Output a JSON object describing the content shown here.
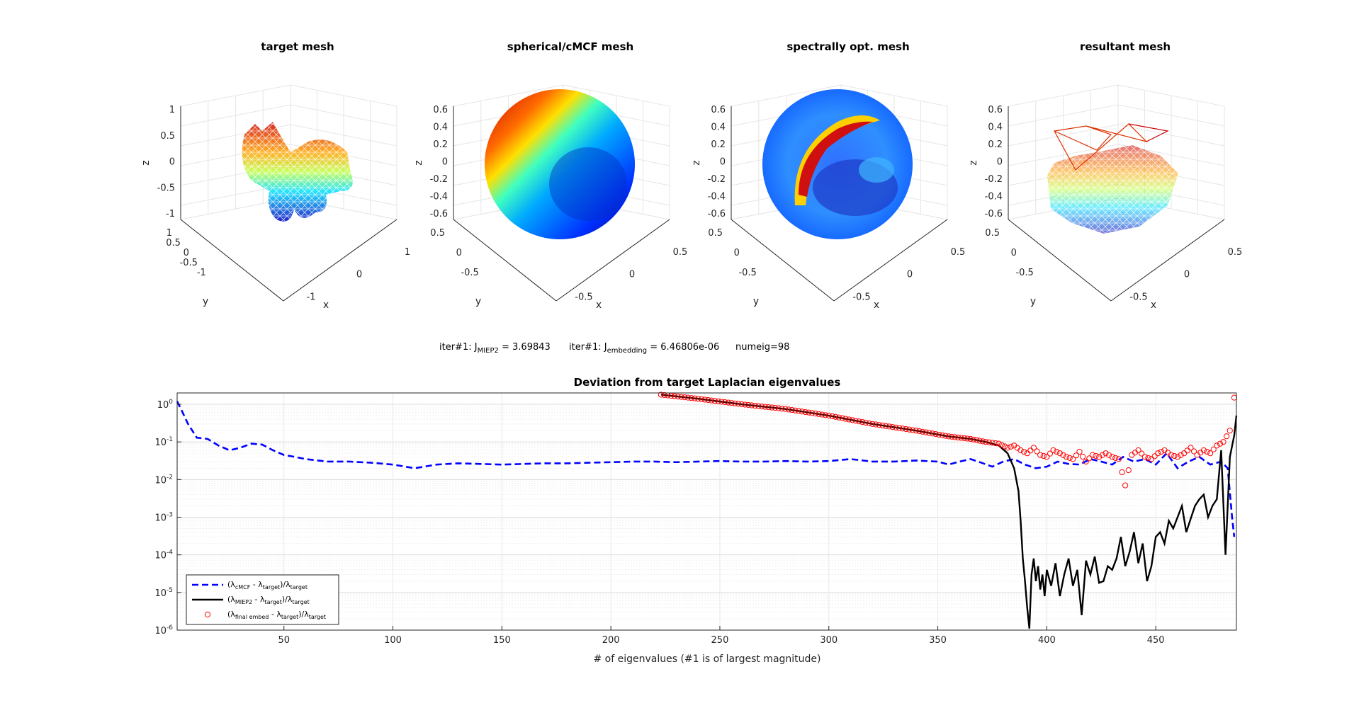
{
  "meshes": [
    {
      "title": "target mesh",
      "z_ticks": [
        "1",
        "0.5",
        "0",
        "-0.5",
        "-1"
      ],
      "y_ticks": [
        "1",
        "0.5",
        "0",
        "-0.5",
        "-1"
      ],
      "x_ticks": [
        "1",
        "0",
        "-1"
      ],
      "xlabel": "x",
      "ylabel": "y",
      "zlabel": "z"
    },
    {
      "title": "spherical/cMCF mesh",
      "z_ticks": [
        "0.6",
        "0.4",
        "0.2",
        "0",
        "-0.2",
        "-0.4",
        "-0.6"
      ],
      "y_ticks": [
        "0.5",
        "0",
        "-0.5"
      ],
      "x_ticks": [
        "0.5",
        "0",
        "-0.5"
      ],
      "xlabel": "x",
      "ylabel": "y",
      "zlabel": "z"
    },
    {
      "title": "spectrally opt. mesh",
      "z_ticks": [
        "0.6",
        "0.4",
        "0.2",
        "0",
        "-0.2",
        "-0.4",
        "-0.6"
      ],
      "y_ticks": [
        "0.5",
        "0",
        "-0.5"
      ],
      "x_ticks": [
        "0.5",
        "0",
        "-0.5"
      ],
      "xlabel": "x",
      "ylabel": "y",
      "zlabel": "z"
    },
    {
      "title": "resultant mesh",
      "z_ticks": [
        "0.6",
        "0.4",
        "0.2",
        "0",
        "-0.2",
        "-0.4",
        "-0.6"
      ],
      "y_ticks": [
        "0.5",
        "0",
        "-0.5"
      ],
      "x_ticks": [
        "0.5",
        "0",
        "-0.5"
      ],
      "xlabel": "x",
      "ylabel": "y",
      "zlabel": "z"
    }
  ],
  "status": {
    "miep_prefix": "iter#1: J",
    "miep_sub": "MIEP2",
    "miep_value": " = 3.69843",
    "emb_prefix": "iter#1: J",
    "emb_sub": "embedding",
    "emb_value": " = 6.46806e-06",
    "numeig": "numeig=98"
  },
  "chart_data": {
    "type": "line",
    "title": "Deviation from target Laplacian eigenvalues",
    "xlabel": "# of eigenvalues (#1 is of largest magnitude)",
    "ylabel": "",
    "xlim": [
      1,
      487
    ],
    "ylim": [
      1e-06,
      2
    ],
    "yscale": "log",
    "grid": "y minor grid on",
    "x_ticks": [
      50,
      100,
      150,
      200,
      250,
      300,
      350,
      400,
      450
    ],
    "y_ticks": [
      {
        "base": "10",
        "exp": "0"
      },
      {
        "base": "10",
        "exp": "-1"
      },
      {
        "base": "10",
        "exp": "-2"
      },
      {
        "base": "10",
        "exp": "-3"
      },
      {
        "base": "10",
        "exp": "-4"
      },
      {
        "base": "10",
        "exp": "-5"
      },
      {
        "base": "10",
        "exp": "-6"
      }
    ],
    "legend_position": "bottom-left",
    "series": [
      {
        "name_parts": [
          "(λ",
          "cMCF",
          " - λ",
          "target",
          ")/λ",
          "target"
        ],
        "style": "dashed",
        "color": "#0000ff",
        "x": [
          1,
          3,
          6,
          10,
          15,
          20,
          25,
          30,
          35,
          40,
          45,
          50,
          55,
          60,
          70,
          80,
          90,
          100,
          110,
          120,
          130,
          140,
          150,
          160,
          170,
          180,
          190,
          200,
          210,
          220,
          230,
          240,
          250,
          260,
          270,
          280,
          290,
          300,
          310,
          320,
          330,
          340,
          350,
          355,
          360,
          365,
          370,
          375,
          380,
          385,
          390,
          395,
          400,
          405,
          410,
          415,
          420,
          425,
          430,
          435,
          440,
          445,
          450,
          455,
          460,
          465,
          470,
          475,
          480,
          483,
          485,
          486
        ],
        "y": [
          1.2,
          0.7,
          0.3,
          0.13,
          0.12,
          0.08,
          0.06,
          0.07,
          0.09,
          0.085,
          0.06,
          0.045,
          0.04,
          0.035,
          0.03,
          0.03,
          0.028,
          0.025,
          0.02,
          0.025,
          0.027,
          0.026,
          0.025,
          0.026,
          0.027,
          0.027,
          0.028,
          0.029,
          0.03,
          0.03,
          0.029,
          0.03,
          0.031,
          0.03,
          0.03,
          0.031,
          0.03,
          0.031,
          0.035,
          0.03,
          0.03,
          0.032,
          0.03,
          0.025,
          0.03,
          0.035,
          0.028,
          0.022,
          0.03,
          0.035,
          0.025,
          0.02,
          0.022,
          0.03,
          0.026,
          0.025,
          0.035,
          0.03,
          0.025,
          0.04,
          0.03,
          0.035,
          0.025,
          0.05,
          0.02,
          0.03,
          0.04,
          0.025,
          0.03,
          0.02,
          0.001,
          0.0003
        ]
      },
      {
        "name_parts": [
          "(λ",
          "MIEP2",
          " - λ",
          "target",
          ")/λ",
          "target"
        ],
        "style": "solid",
        "color": "#000000",
        "x": [
          223,
          240,
          260,
          280,
          300,
          320,
          340,
          355,
          365,
          372,
          378,
          382,
          385,
          387,
          388,
          389,
          390,
          391,
          392,
          393,
          394,
          395,
          396,
          397,
          398,
          399,
          400,
          402,
          404,
          406,
          408,
          410,
          412,
          414,
          416,
          418,
          420,
          422,
          424,
          426,
          428,
          430,
          432,
          434,
          436,
          438,
          440,
          442,
          444,
          446,
          448,
          450,
          452,
          454,
          456,
          458,
          460,
          462,
          464,
          466,
          468,
          470,
          472,
          474,
          476,
          478,
          480,
          482,
          484,
          486,
          487
        ],
        "y": [
          1.8,
          1.4,
          1.0,
          0.75,
          0.5,
          0.3,
          0.2,
          0.14,
          0.12,
          0.1,
          0.08,
          0.05,
          0.02,
          0.005,
          0.0008,
          8e-05,
          2e-05,
          4e-06,
          1.1e-06,
          3e-05,
          8e-05,
          2e-05,
          5e-05,
          1.2e-05,
          3e-05,
          8e-06,
          4e-05,
          1.5e-05,
          6e-05,
          8e-06,
          3e-05,
          8e-05,
          1.5e-05,
          4e-05,
          2.5e-06,
          7e-05,
          3e-05,
          9e-05,
          1.8e-05,
          2e-05,
          5e-05,
          4e-05,
          8e-05,
          0.0003,
          5e-05,
          0.00012,
          0.0004,
          6e-05,
          0.0002,
          2e-05,
          5e-05,
          0.0003,
          0.0004,
          0.0002,
          0.0008,
          0.0005,
          0.001,
          0.002,
          0.0004,
          0.0009,
          0.002,
          0.003,
          0.004,
          0.001,
          0.002,
          0.003,
          0.06,
          0.0001,
          0.04,
          0.15,
          0.5
        ]
      },
      {
        "name_parts": [
          "(λ",
          "final embed",
          " - λ",
          "target",
          ")/λ",
          "target"
        ],
        "style": "markers-circle",
        "color": "#ff0000",
        "x": [
          223,
          240,
          260,
          280,
          300,
          320,
          340,
          355,
          365,
          372,
          378,
          382,
          385,
          388,
          391,
          394,
          397,
          400,
          403,
          406,
          409,
          412,
          415,
          418,
          421,
          424,
          427,
          430,
          433,
          436,
          439,
          442,
          445,
          448,
          451,
          454,
          457,
          460,
          463,
          466,
          469,
          472,
          475,
          478,
          481,
          484,
          486
        ],
        "y": [
          1.8,
          1.4,
          1.0,
          0.75,
          0.5,
          0.3,
          0.2,
          0.14,
          0.12,
          0.1,
          0.09,
          0.07,
          0.08,
          0.06,
          0.05,
          0.07,
          0.045,
          0.04,
          0.06,
          0.05,
          0.04,
          0.035,
          0.055,
          0.03,
          0.045,
          0.04,
          0.05,
          0.04,
          0.035,
          0.007,
          0.045,
          0.06,
          0.04,
          0.035,
          0.05,
          0.06,
          0.045,
          0.04,
          0.05,
          0.07,
          0.045,
          0.06,
          0.05,
          0.08,
          0.1,
          0.2,
          1.5
        ]
      }
    ]
  }
}
